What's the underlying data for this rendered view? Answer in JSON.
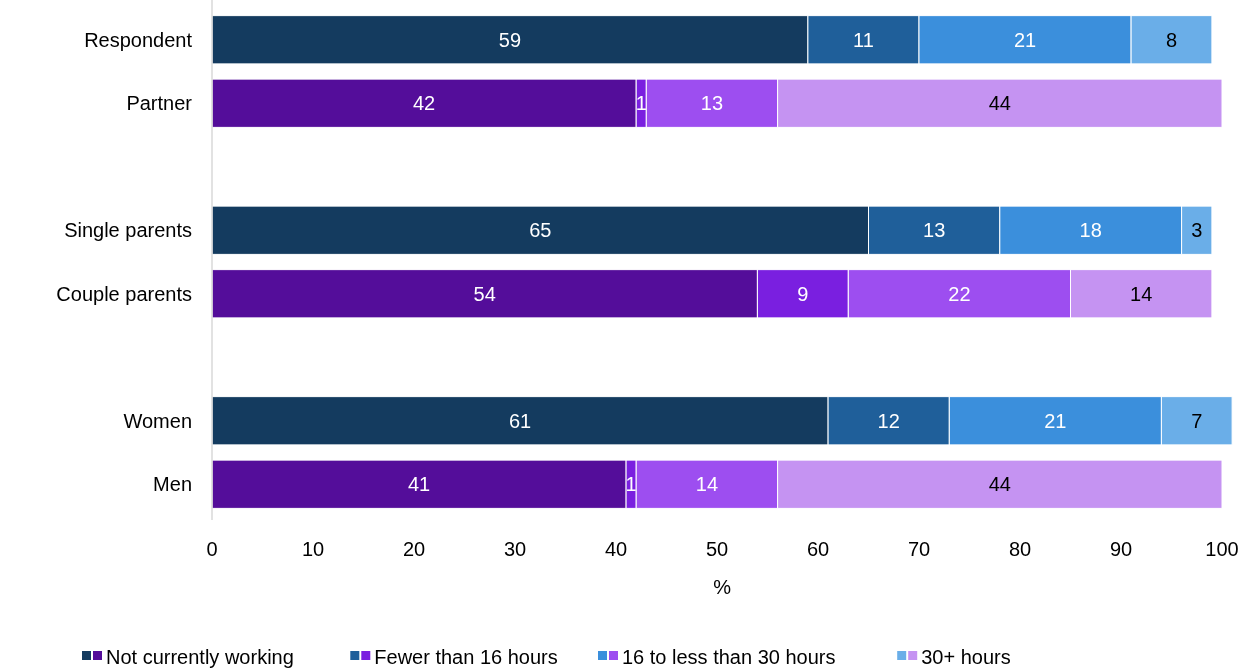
{
  "chart_data": {
    "type": "bar",
    "orientation": "horizontal",
    "stacked": true,
    "xlabel": "%",
    "categories": [
      "Respondent",
      "Partner",
      null,
      "Single parents",
      "Couple parents",
      null,
      "Women",
      "Men"
    ],
    "series": [
      {
        "name": "Not currently working",
        "values": [
          59,
          42,
          null,
          65,
          54,
          null,
          61,
          41
        ],
        "colors": [
          "#143b5f",
          "#540d9a",
          "#143b5f",
          "#143b5f",
          "#540d9a",
          "#540d9a",
          "#143b5f",
          "#540d9a"
        ]
      },
      {
        "name": "Fewer than 16 hours",
        "values": [
          11,
          1,
          null,
          13,
          9,
          null,
          12,
          1
        ],
        "colors": [
          "#1f5f9a",
          "#7a1fe0",
          "#1f5f9a",
          "#1f5f9a",
          "#7a1fe0",
          "#7a1fe0",
          "#1f5f9a",
          "#7a1fe0"
        ]
      },
      {
        "name": "16 to less than 30 hours",
        "values": [
          21,
          13,
          null,
          18,
          22,
          null,
          21,
          14
        ],
        "colors": [
          "#3b8fdc",
          "#9d4ef0",
          "#3b8fdc",
          "#3b8fdc",
          "#9d4ef0",
          "#9d4ef0",
          "#3b8fdc",
          "#9d4ef0"
        ]
      },
      {
        "name": "30+ hours",
        "values": [
          8,
          44,
          null,
          3,
          14,
          null,
          7,
          44
        ],
        "colors": [
          "#6aaee8",
          "#c593f2",
          "#6aaee8",
          "#6aaee8",
          "#c593f2",
          "#c593f2",
          "#6aaee8",
          "#c593f2"
        ]
      }
    ],
    "xlim": [
      0,
      101
    ],
    "xticks": [
      0,
      10,
      20,
      30,
      40,
      50,
      60,
      70,
      80,
      90,
      100
    ],
    "data_labels": true,
    "legend": "bottom",
    "grid": false
  }
}
